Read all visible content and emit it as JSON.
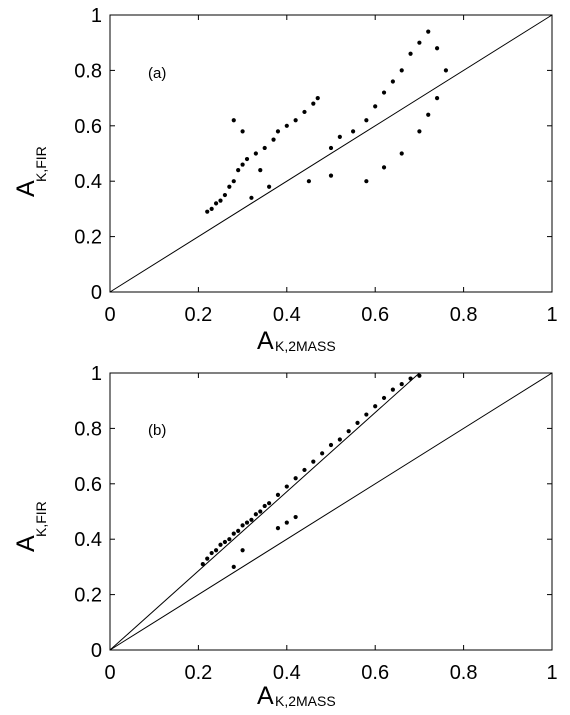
{
  "chart_data": [
    {
      "type": "scatter",
      "panel_label": "(a)",
      "xlabel_main": "A",
      "xlabel_sub": "K,2MASS",
      "ylabel_main": "A",
      "ylabel_sub": "K,FIR",
      "xlim": [
        0,
        1
      ],
      "ylim": [
        0,
        1
      ],
      "x_ticks": [
        "0",
        "0.2",
        "0.4",
        "0.6",
        "0.8",
        "1"
      ],
      "y_ticks": [
        "0",
        "0.2",
        "0.4",
        "0.6",
        "0.8",
        "1"
      ],
      "reference_line": {
        "label": "",
        "points": [
          [
            0,
            0
          ],
          [
            1,
            1
          ]
        ]
      },
      "series": [
        {
          "values": [
            [
              0.22,
              0.29
            ],
            [
              0.23,
              0.3
            ],
            [
              0.24,
              0.32
            ],
            [
              0.25,
              0.33
            ],
            [
              0.26,
              0.35
            ],
            [
              0.27,
              0.38
            ],
            [
              0.28,
              0.4
            ],
            [
              0.29,
              0.44
            ],
            [
              0.3,
              0.46
            ],
            [
              0.31,
              0.48
            ],
            [
              0.33,
              0.5
            ],
            [
              0.35,
              0.52
            ],
            [
              0.37,
              0.55
            ],
            [
              0.38,
              0.58
            ],
            [
              0.4,
              0.6
            ],
            [
              0.42,
              0.62
            ],
            [
              0.44,
              0.65
            ],
            [
              0.46,
              0.68
            ],
            [
              0.47,
              0.7
            ],
            [
              0.5,
              0.52
            ],
            [
              0.52,
              0.56
            ],
            [
              0.55,
              0.58
            ],
            [
              0.58,
              0.62
            ],
            [
              0.6,
              0.67
            ],
            [
              0.62,
              0.72
            ],
            [
              0.64,
              0.76
            ],
            [
              0.66,
              0.8
            ],
            [
              0.68,
              0.86
            ],
            [
              0.7,
              0.9
            ],
            [
              0.72,
              0.94
            ],
            [
              0.74,
              0.88
            ],
            [
              0.76,
              0.8
            ],
            [
              0.58,
              0.4
            ],
            [
              0.62,
              0.45
            ],
            [
              0.66,
              0.5
            ],
            [
              0.7,
              0.58
            ],
            [
              0.72,
              0.64
            ],
            [
              0.74,
              0.7
            ],
            [
              0.28,
              0.62
            ],
            [
              0.3,
              0.58
            ],
            [
              0.45,
              0.4
            ],
            [
              0.5,
              0.42
            ],
            [
              0.36,
              0.38
            ],
            [
              0.32,
              0.34
            ],
            [
              0.34,
              0.44
            ]
          ]
        }
      ]
    },
    {
      "type": "scatter",
      "panel_label": "(b)",
      "xlabel_main": "A",
      "xlabel_sub": "K,2MASS",
      "ylabel_main": "A",
      "ylabel_sub": "K,FIR",
      "xlim": [
        0,
        1
      ],
      "ylim": [
        0,
        1
      ],
      "x_ticks": [
        "0",
        "0.2",
        "0.4",
        "0.6",
        "0.8",
        "1"
      ],
      "y_ticks": [
        "0",
        "0.2",
        "0.4",
        "0.6",
        "0.8",
        "1"
      ],
      "reference_line": {
        "label": "",
        "points": [
          [
            0,
            0
          ],
          [
            1,
            1
          ]
        ]
      },
      "fit_line": {
        "label": "",
        "points": [
          [
            0,
            0
          ],
          [
            0.7,
            1
          ]
        ]
      },
      "series": [
        {
          "values": [
            [
              0.21,
              0.31
            ],
            [
              0.22,
              0.33
            ],
            [
              0.23,
              0.35
            ],
            [
              0.24,
              0.36
            ],
            [
              0.25,
              0.38
            ],
            [
              0.26,
              0.39
            ],
            [
              0.27,
              0.4
            ],
            [
              0.28,
              0.42
            ],
            [
              0.29,
              0.43
            ],
            [
              0.3,
              0.45
            ],
            [
              0.31,
              0.46
            ],
            [
              0.32,
              0.47
            ],
            [
              0.33,
              0.49
            ],
            [
              0.34,
              0.5
            ],
            [
              0.35,
              0.52
            ],
            [
              0.36,
              0.53
            ],
            [
              0.38,
              0.56
            ],
            [
              0.4,
              0.59
            ],
            [
              0.42,
              0.62
            ],
            [
              0.44,
              0.65
            ],
            [
              0.46,
              0.68
            ],
            [
              0.48,
              0.71
            ],
            [
              0.5,
              0.74
            ],
            [
              0.52,
              0.76
            ],
            [
              0.54,
              0.79
            ],
            [
              0.56,
              0.82
            ],
            [
              0.58,
              0.85
            ],
            [
              0.6,
              0.88
            ],
            [
              0.62,
              0.91
            ],
            [
              0.64,
              0.94
            ],
            [
              0.66,
              0.96
            ],
            [
              0.68,
              0.98
            ],
            [
              0.7,
              0.99
            ],
            [
              0.42,
              0.48
            ],
            [
              0.4,
              0.46
            ],
            [
              0.38,
              0.44
            ],
            [
              0.3,
              0.36
            ],
            [
              0.28,
              0.3
            ]
          ]
        }
      ]
    }
  ]
}
